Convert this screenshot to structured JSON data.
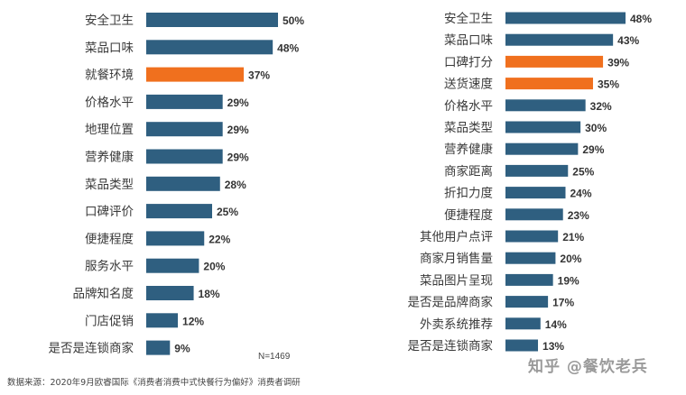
{
  "chart_data": [
    {
      "type": "bar",
      "orientation": "horizontal",
      "categories": [
        "安全卫生",
        "菜品口味",
        "就餐环境",
        "价格水平",
        "地理位置",
        "营养健康",
        "菜品类型",
        "口碑评价",
        "便捷程度",
        "服务水平",
        "品牌知名度",
        "门店促销",
        "是否是连锁商家"
      ],
      "values": [
        50,
        48,
        37,
        29,
        29,
        29,
        28,
        25,
        22,
        20,
        18,
        12,
        9
      ],
      "value_labels": [
        "50%",
        "48%",
        "37%",
        "29%",
        "29%",
        "29%",
        "28%",
        "25%",
        "22%",
        "20%",
        "18%",
        "12%",
        "9%"
      ],
      "highlighted": [
        2
      ],
      "note": "N=1469"
    },
    {
      "type": "bar",
      "orientation": "horizontal",
      "categories": [
        "安全卫生",
        "菜品口味",
        "口碑打分",
        "送货速度",
        "价格水平",
        "菜品类型",
        "营养健康",
        "商家距离",
        "折扣力度",
        "便捷程度",
        "其他用户点评",
        "商家月销售量",
        "菜品图片呈现",
        "是否是品牌商家",
        "外卖系统推荐",
        "是否是连锁商家"
      ],
      "values": [
        48,
        43,
        39,
        35,
        32,
        30,
        29,
        25,
        24,
        23,
        21,
        20,
        19,
        17,
        14,
        13
      ],
      "value_labels": [
        "48%",
        "43%",
        "39%",
        "35%",
        "32%",
        "30%",
        "29%",
        "25%",
        "24%",
        "23%",
        "21%",
        "20%",
        "19%",
        "17%",
        "14%",
        "13%"
      ],
      "highlighted": [
        2,
        3
      ]
    }
  ],
  "colors": {
    "bar": "#2f5f80",
    "highlight": "#f0701e"
  },
  "source": "数据来源：2020年9月欧睿国际《消费者消费中式快餐行为偏好》消费者调研",
  "watermark": "知乎 @餐饮老兵"
}
